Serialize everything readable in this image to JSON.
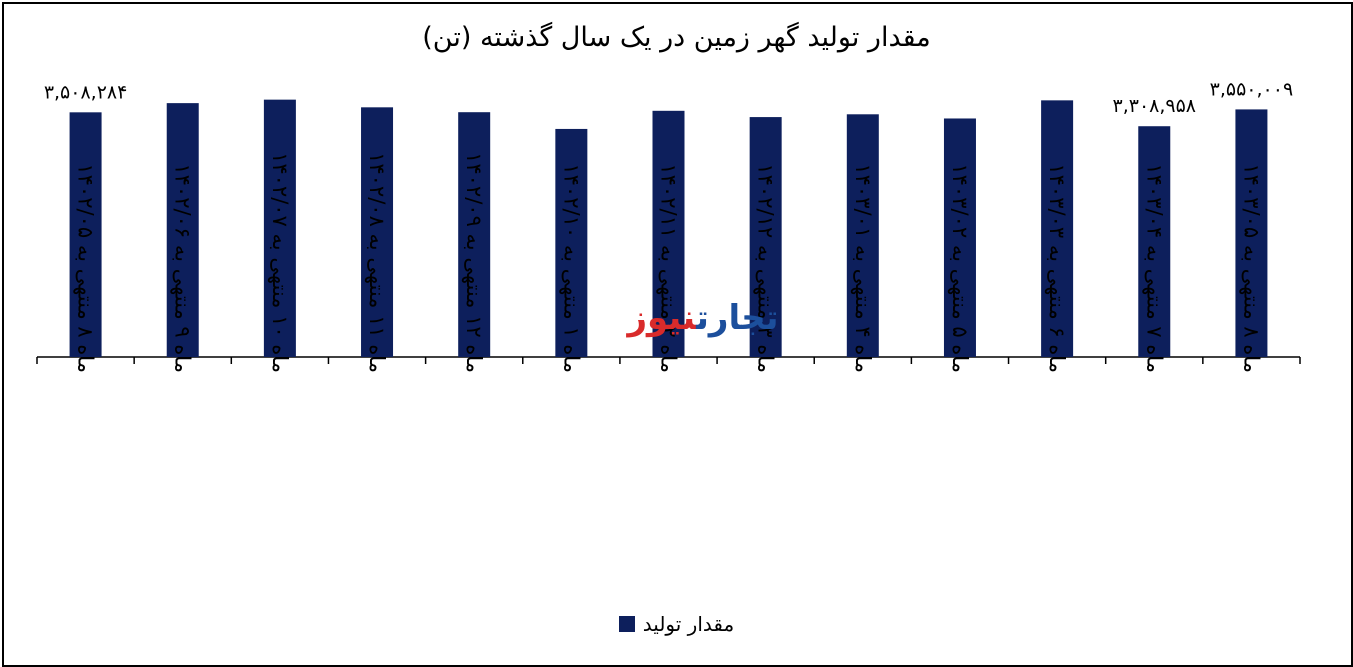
{
  "chart_data": {
    "type": "bar",
    "title": "مقدار تولید گهر زمین در یک سال گذشته (تن)",
    "xlabel": "",
    "ylabel": "",
    "categories": [
      "ماه ۸ منتهی به ۱۴۰۲/۰۵",
      "ماه ۹ منتهی به ۱۴۰۲/۰۶",
      "ماه ۱۰ منتهی به ۱۴۰۲/۰۷",
      "ماه ۱۱ منتهی به ۱۴۰۲/۰۸",
      "ماه ۱۲ منتهی به ۱۴۰۲/۰۹",
      "ماه ۱ منتهی به ۱۴۰۲/۱۰",
      "ماه ۲ منتهی به ۱۴۰۲/۱۱",
      "ماه ۳ منتهی به ۱۴۰۲/۱۲",
      "ماه ۴ منتهی به ۱۴۰۳/۰۱",
      "ماه ۵ منتهی به ۱۴۰۳/۰۲",
      "ماه ۶ منتهی به ۱۴۰۳/۰۳",
      "ماه ۷ منتهی به ۱۴۰۳/۰۴",
      "ماه ۸ منتهی به ۱۴۰۳/۰۵"
    ],
    "series": [
      {
        "name": "مقدار تولید",
        "values": [
          3508284,
          3640000,
          3690000,
          3580000,
          3510000,
          3270000,
          3530000,
          3440000,
          3480000,
          3420000,
          3680000,
          3308958,
          3550009
        ]
      }
    ],
    "data_labels": [
      {
        "index": 0,
        "text": "۳,۵۰۸,۲۸۴"
      },
      {
        "index": 11,
        "text": "۳,۳۰۸,۹۵۸"
      },
      {
        "index": 12,
        "text": "۳,۵۵۰,۰۰۹"
      }
    ],
    "ylim": [
      0,
      3900000
    ],
    "grid": false,
    "legend_position": "bottom"
  },
  "watermark": {
    "part_a": "تجارت",
    "part_b": "نیوز"
  },
  "colors": {
    "bar": "#0d1f5c",
    "watermark_blue": "#1c4f9c",
    "watermark_red": "#d92b2b"
  }
}
